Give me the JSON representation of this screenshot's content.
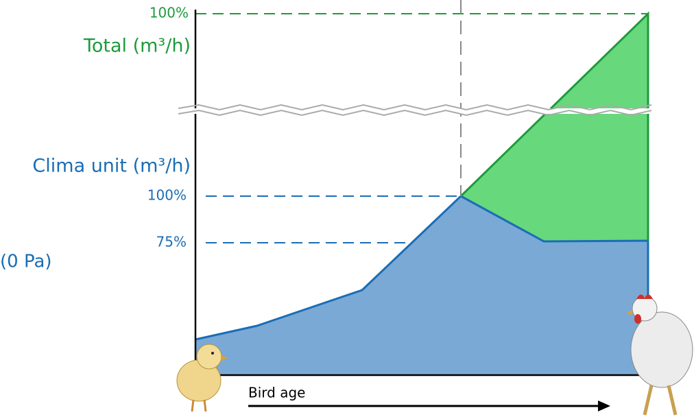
{
  "labels": {
    "total_max": "100%",
    "total_axis": "Total (m³/h)",
    "clima_axis": "Clima unit (m³/h)",
    "clima_max": "100%",
    "clima_75": "75%",
    "pressure": "(0 Pa)",
    "x_axis": "Bird age"
  }
}
